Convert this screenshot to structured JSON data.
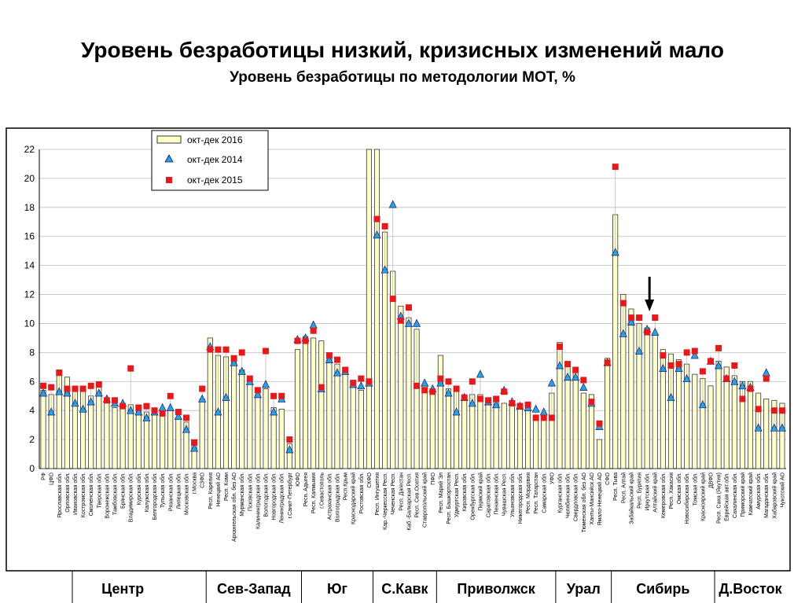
{
  "header": {
    "title": "Уровень безработицы низкий, кризисных изменений мало",
    "subtitle": "Уровень безработицы по методологии МОТ, %"
  },
  "colors": {
    "bar_fill": "#ffffcc",
    "bar_stroke": "#333333",
    "marker_2014": "#29a3e0",
    "marker_2015": "#e31a1c",
    "grid": "#bdbdbd"
  },
  "chart_data": {
    "type": "bar",
    "ylim": [
      0,
      22
    ],
    "yticks": [
      0,
      2,
      4,
      6,
      8,
      10,
      12,
      14,
      16,
      18,
      20,
      22
    ],
    "grid": true,
    "legend_position": "top-left",
    "legend": [
      "окт-дек 2016",
      "окт-дек 2014",
      "окт-дек 2015"
    ],
    "categories": [
      "РФ",
      "ЦФО",
      "Ярославская обл.",
      "Орловская обл.",
      "Ивановская обл.",
      "Костромская обл.",
      "Смоленская обл.",
      "Тверская обл.",
      "Воронежская обл.",
      "Тамбовская обл.",
      "Брянская обл.",
      "Владимирская обл.",
      "Курская обл.",
      "Калужская обл.",
      "Белгородская обл.",
      "Тульская обл.",
      "Рязанская обл.",
      "Липецкая обл.",
      "Московская обл.",
      "г.Москва",
      "СЗФО",
      "Респ. Карелия",
      "Ненецкий АО",
      "Респ. Коми",
      "Архангельская обл. без АО",
      "Мурманская обл.",
      "Псковская обл.",
      "Калининградская обл.",
      "Вологодская обл.",
      "Новгородская обл.",
      "Ленинградская обл.",
      "г.Санкт-Петербург",
      "ЮФО",
      "Респ. Адыгея",
      "Респ. Калмыкия",
      "г.Севастополь",
      "Астраханская обл.",
      "Волгоградская обл.",
      "Респ.Крым",
      "Краснодарский край",
      "Ростовская обл.",
      "СКФО",
      "Респ. Ингушетия",
      "Кар.-Черкесская Респ.",
      "Чеченская Респ.",
      "Респ. Дагестан",
      "Каб.-Балкарская Респ.",
      "Респ. Сев.Осетия",
      "Ставропольский край",
      "ПФО",
      "Респ. Марий Эл",
      "Респ. Башкортостан",
      "Удмуртская Респ.",
      "Кировская обл.",
      "Оренбургская обл.",
      "Пермский край",
      "Саратовская обл.",
      "Пензенская обл.",
      "Чувашская Респ.",
      "Ульяновская обл.",
      "Нижегородская обл.",
      "Респ. Мордовия",
      "Респ. Татарстан",
      "Самарская обл.",
      "УФО",
      "Курганская обл.",
      "Челябинская обл.",
      "Свердловская обл.",
      "Тюменская обл. без АО",
      "Ханты-Мансийск.АО",
      "Ямало-Ненецкий АО",
      "СФО",
      "Респ. Тыва",
      "Респ. Алтай",
      "Забайкальский край",
      "Респ. Бурятия",
      "Иркутская обл.",
      "Алтайский край",
      "Кемеровская обл.",
      "Респ. Хакасия",
      "Омская обл.",
      "Новосибирская обл.",
      "Томская обл.",
      "Красноярский край",
      "ДВФО",
      "Респ. Саха (Якутия)",
      "Еврейская авт.обл.",
      "Сахалинская обл.",
      "Приморский край",
      "Камчатский край",
      "Амурская обл.",
      "Магаданская обл.",
      "Хабаровский край",
      "Чукотский АО"
    ],
    "series": [
      {
        "name": "окт-дек 2016",
        "kind": "bar",
        "values": [
          5.4,
          5.1,
          6.8,
          6.3,
          5.5,
          5.6,
          5.0,
          5.6,
          4.7,
          4.2,
          4.3,
          4.4,
          4.0,
          3.9,
          3.9,
          3.8,
          4.1,
          3.5,
          3.2,
          1.6,
          4.8,
          9.0,
          7.8,
          7.7,
          7.5,
          6.8,
          6.2,
          5.1,
          5.5,
          4.2,
          4.1,
          1.7,
          8.2,
          9.1,
          9.0,
          8.8,
          7.8,
          7.2,
          6.9,
          5.6,
          5.4,
          22.0,
          22.0,
          16.3,
          13.6,
          11.2,
          10.4,
          9.6,
          5.8,
          5.5,
          7.8,
          5.5,
          5.3,
          5.0,
          5.1,
          5.1,
          4.7,
          4.6,
          4.5,
          4.4,
          4.5,
          4.2,
          3.6,
          3.6,
          5.2,
          8.7,
          7.1,
          6.6,
          5.2,
          5.1,
          2.0,
          7.6,
          17.5,
          12.0,
          11.0,
          10.0,
          9.7,
          9.3,
          8.2,
          7.9,
          7.5,
          7.2,
          6.5,
          6.2,
          5.7,
          7.4,
          7.0,
          6.4,
          6.0,
          6.0,
          5.2,
          4.8,
          4.7,
          4.5
        ]
      },
      {
        "name": "окт-дек 2014",
        "kind": "triangle",
        "values": [
          5.2,
          3.9,
          5.3,
          5.2,
          4.5,
          4.1,
          4.6,
          5.2,
          4.8,
          4.5,
          4.5,
          4.0,
          3.9,
          3.5,
          3.9,
          4.2,
          4.2,
          3.6,
          2.7,
          1.4,
          4.8,
          8.4,
          3.9,
          4.9,
          7.3,
          6.7,
          6.0,
          5.1,
          5.8,
          3.9,
          4.8,
          1.3,
          8.9,
          9.0,
          9.9,
          5.5,
          7.5,
          6.6,
          6.7,
          5.8,
          5.7,
          5.9,
          16.1,
          13.7,
          18.2,
          10.5,
          10.0,
          10.0,
          5.9,
          5.5,
          5.9,
          5.2,
          3.9,
          4.9,
          4.5,
          6.5,
          4.6,
          4.4,
          5.4,
          4.6,
          4.3,
          4.2,
          4.1,
          3.9,
          5.9,
          7.1,
          6.3,
          6.3,
          5.6,
          4.5,
          2.9,
          7.3,
          14.9,
          9.3,
          10.1,
          8.1,
          9.6,
          9.4,
          6.9,
          4.9,
          6.9,
          6.2,
          7.8,
          4.4,
          7.4,
          7.1,
          6.2,
          6.0,
          5.7,
          5.6,
          2.8,
          6.6,
          2.8,
          2.8
        ]
      },
      {
        "name": "окт-дек 2015",
        "kind": "square",
        "values": [
          5.7,
          5.6,
          6.6,
          5.5,
          5.5,
          5.5,
          5.7,
          5.8,
          4.7,
          4.7,
          4.3,
          6.9,
          4.2,
          4.3,
          4.0,
          3.8,
          5.0,
          3.9,
          3.5,
          1.8,
          5.5,
          8.2,
          8.2,
          8.2,
          7.6,
          8.0,
          6.2,
          5.4,
          8.1,
          5.0,
          5.0,
          2.0,
          8.8,
          8.8,
          9.5,
          5.6,
          7.8,
          7.5,
          6.8,
          5.9,
          6.2,
          6.0,
          17.2,
          16.7,
          11.7,
          10.2,
          11.1,
          5.7,
          5.4,
          5.3,
          6.2,
          6.0,
          5.5,
          4.9,
          6.0,
          4.8,
          4.7,
          4.8,
          5.3,
          4.5,
          4.3,
          4.4,
          3.5,
          3.5,
          3.5,
          8.4,
          7.2,
          6.8,
          6.1,
          4.6,
          3.1,
          7.3,
          20.8,
          11.4,
          10.4,
          10.4,
          9.4,
          10.4,
          7.8,
          7.1,
          7.2,
          8.0,
          8.1,
          6.7,
          7.4,
          8.3,
          6.2,
          7.1,
          4.8,
          5.5,
          4.1,
          6.2,
          4.0,
          4.0
        ]
      }
    ],
    "regions": [
      {
        "label": "Центр",
        "start": 0,
        "end": 20
      },
      {
        "label": "Сев-Запад",
        "start": 21,
        "end": 32
      },
      {
        "label": "Юг",
        "start": 33,
        "end": 41
      },
      {
        "label": "С.Кавк",
        "start": 42,
        "end": 49
      },
      {
        "label": "Приволжск",
        "start": 50,
        "end": 64
      },
      {
        "label": "Урал",
        "start": 65,
        "end": 71
      },
      {
        "label": "Сибирь",
        "start": 72,
        "end": 84
      },
      {
        "label": "Д.Восток",
        "start": 85,
        "end": 93
      }
    ],
    "arrow_category_index": 76
  }
}
